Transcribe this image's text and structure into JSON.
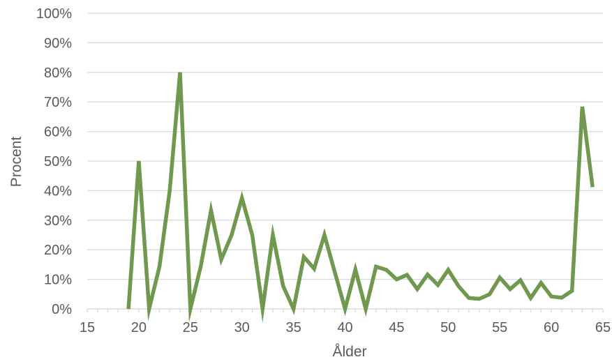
{
  "chart_data": {
    "type": "line",
    "title": "",
    "xlabel": "Ålder",
    "ylabel": "Procent",
    "xlim": [
      15,
      65
    ],
    "ylim": [
      0,
      100
    ],
    "x_ticks": [
      15,
      20,
      25,
      30,
      35,
      40,
      45,
      50,
      55,
      60,
      65
    ],
    "x_tick_labels": [
      "15",
      "20",
      "25",
      "30",
      "35",
      "40",
      "45",
      "50",
      "55",
      "60",
      "65"
    ],
    "y_ticks": [
      0,
      10,
      20,
      30,
      40,
      50,
      60,
      70,
      80,
      90,
      100
    ],
    "y_tick_labels": [
      "0%",
      "10%",
      "20%",
      "30%",
      "40%",
      "50%",
      "60%",
      "70%",
      "80%",
      "90%",
      "100%"
    ],
    "grid": "horizontal",
    "legend": "none",
    "series": [
      {
        "color": "#70984F",
        "x": [
          19,
          20,
          21,
          22,
          23,
          24,
          25,
          26,
          27,
          28,
          29,
          30,
          31,
          32,
          33,
          34,
          35,
          36,
          37,
          38,
          39,
          40,
          41,
          42,
          43,
          44,
          45,
          46,
          47,
          48,
          49,
          50,
          51,
          52,
          53,
          54,
          55,
          56,
          57,
          58,
          59,
          60,
          61,
          62,
          63,
          64
        ],
        "values": [
          0,
          50,
          0,
          14.3,
          40,
          80,
          0,
          14.3,
          33.3,
          16.7,
          25,
          37.5,
          25,
          0,
          25,
          7.7,
          0,
          17.6,
          13.6,
          25,
          12.5,
          0,
          13.3,
          0,
          14.3,
          13.2,
          10,
          11.5,
          6.7,
          11.6,
          8.1,
          13.2,
          7.7,
          3.7,
          3.4,
          4.9,
          10.6,
          6.7,
          9.7,
          3.7,
          8.8,
          4.2,
          3.8,
          6.1,
          68.4,
          41.2
        ]
      }
    ]
  }
}
